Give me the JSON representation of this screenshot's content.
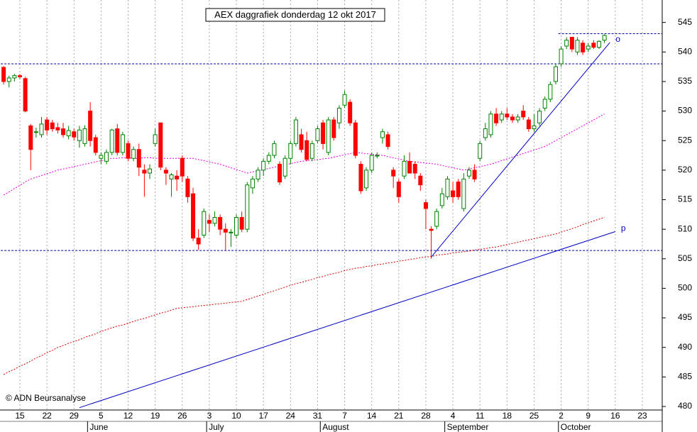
{
  "chart_data": {
    "type": "candlestick",
    "title": "AEX daggrafiek donderdag 12 okt 2017",
    "copyright": "© ADN Beursanalyse",
    "categories": [
      null,
      null,
      null,
      "15",
      null,
      null,
      null,
      null,
      "22",
      null,
      null,
      null,
      null,
      "29",
      null,
      null,
      null,
      null,
      "5",
      null,
      null,
      null,
      null,
      "12",
      null,
      null,
      null,
      null,
      "19",
      null,
      null,
      null,
      null,
      "26",
      null,
      null,
      null,
      null,
      "3",
      null,
      null,
      null,
      null,
      "10",
      null,
      null,
      null,
      null,
      "17",
      null,
      null,
      null,
      null,
      "24",
      null,
      null,
      null,
      null,
      "31",
      null,
      null,
      null,
      null,
      "7",
      null,
      null,
      null,
      null,
      "14",
      null,
      null,
      null,
      null,
      "21",
      null,
      null,
      null,
      null,
      "28",
      null,
      null,
      null,
      null,
      "4",
      null,
      null,
      null,
      null,
      "11",
      null,
      null,
      null,
      null,
      "18",
      null,
      null,
      null,
      null,
      "25",
      null,
      null,
      null,
      null,
      "2",
      null,
      null,
      null,
      null,
      "9",
      null,
      null,
      null,
      null,
      "16",
      null,
      null,
      null,
      null,
      "23",
      null,
      null,
      null
    ],
    "month_labels": [
      null,
      null,
      null,
      null,
      null,
      null,
      null,
      null,
      null,
      null,
      null,
      null,
      null,
      null,
      null,
      null,
      "June",
      null,
      null,
      null,
      null,
      null,
      null,
      null,
      null,
      null,
      null,
      null,
      null,
      null,
      null,
      null,
      null,
      null,
      null,
      null,
      null,
      null,
      "July",
      null,
      null,
      null,
      null,
      null,
      null,
      null,
      null,
      null,
      null,
      null,
      null,
      null,
      null,
      null,
      null,
      null,
      null,
      null,
      null,
      "August",
      null,
      null,
      null,
      null,
      null,
      null,
      null,
      null,
      null,
      null,
      null,
      null,
      null,
      null,
      null,
      null,
      null,
      null,
      null,
      null,
      null,
      null,
      "September",
      null,
      null,
      null,
      null,
      null,
      null,
      null,
      null,
      null,
      null,
      null,
      null,
      null,
      null,
      null,
      null,
      null,
      null,
      null,
      null,
      "October",
      null,
      null,
      null,
      null,
      null,
      null,
      null,
      null,
      null,
      null,
      null,
      null,
      null,
      null,
      null,
      null,
      null,
      null
    ],
    "ohlc": [
      [
        537.4,
        537.6,
        534.5,
        535.0
      ],
      [
        535.0,
        536.0,
        534.0,
        535.6
      ],
      [
        535.6,
        536.3,
        535.0,
        536.0
      ],
      [
        536.0,
        536.3,
        535.4,
        535.8
      ],
      [
        535.5,
        535.8,
        529.8,
        530.0
      ],
      [
        527.5,
        527.8,
        520.0,
        523.5
      ],
      [
        526.5,
        527.2,
        525.5,
        526.5
      ],
      [
        526.0,
        529.0,
        525.5,
        527.8
      ],
      [
        528.5,
        529.0,
        526.0,
        526.8
      ],
      [
        528.0,
        528.5,
        526.5,
        527.0
      ],
      [
        527.2,
        528.0,
        526.2,
        526.8
      ],
      [
        527.0,
        528.0,
        525.5,
        526.0
      ],
      [
        525.8,
        527.5,
        525.2,
        526.7
      ],
      [
        526.5,
        527.0,
        525.0,
        525.6
      ],
      [
        525.0,
        527.5,
        523.8,
        526.8
      ],
      [
        524.5,
        527.6,
        524.0,
        527.0
      ],
      [
        530.0,
        531.5,
        524.0,
        525.0
      ],
      [
        525.5,
        526.0,
        522.5,
        523.0
      ],
      [
        522.0,
        523.0,
        521.0,
        522.5
      ],
      [
        521.5,
        523.5,
        521.0,
        523.0
      ],
      [
        523.0,
        527.0,
        522.5,
        526.8
      ],
      [
        527.0,
        527.8,
        522.5,
        523.0
      ],
      [
        523.0,
        526.5,
        522.5,
        526.0
      ],
      [
        524.5,
        525.0,
        521.5,
        522.0
      ],
      [
        522.0,
        524.0,
        521.5,
        523.5
      ],
      [
        523.5,
        524.5,
        519.0,
        520.5
      ],
      [
        520.0,
        521.0,
        515.5,
        519.5
      ],
      [
        519.5,
        521.0,
        518.5,
        520.2
      ],
      [
        524.5,
        527.0,
        524.0,
        526.0
      ],
      [
        528.0,
        528.0,
        520.0,
        520.5
      ],
      [
        520.0,
        520.5,
        517.5,
        519.5
      ],
      [
        518.5,
        519.5,
        515.5,
        519.2
      ],
      [
        519.0,
        520.0,
        516.5,
        518.5
      ],
      [
        522.0,
        522.5,
        518.0,
        519.0
      ],
      [
        518.5,
        519.0,
        514.5,
        515.5
      ],
      [
        516.0,
        517.0,
        508.0,
        508.5
      ],
      [
        508.5,
        510.0,
        506.5,
        507.5
      ],
      [
        509.0,
        513.5,
        508.5,
        513.0
      ],
      [
        511.5,
        512.5,
        509.5,
        511.0
      ],
      [
        511.0,
        513.0,
        510.5,
        512.0
      ],
      [
        512.0,
        512.5,
        509.0,
        510.0
      ],
      [
        510.0,
        511.0,
        506.5,
        509.5
      ],
      [
        509.5,
        510.0,
        507.0,
        509.5
      ],
      [
        509.0,
        512.5,
        508.5,
        512.0
      ],
      [
        512.0,
        513.0,
        509.5,
        510.0
      ],
      [
        510.0,
        518.0,
        509.5,
        517.5
      ],
      [
        517.0,
        519.0,
        516.0,
        518.5
      ],
      [
        518.5,
        520.5,
        518.0,
        520.0
      ],
      [
        520.0,
        522.0,
        519.0,
        521.5
      ],
      [
        521.5,
        523.0,
        521.0,
        522.5
      ],
      [
        522.5,
        525.0,
        522.0,
        524.5
      ],
      [
        521.0,
        521.5,
        517.5,
        518.0
      ],
      [
        519.0,
        522.5,
        518.5,
        522.0
      ],
      [
        522.0,
        525.0,
        521.0,
        524.5
      ],
      [
        524.5,
        529.0,
        524.0,
        528.5
      ],
      [
        526.0,
        527.0,
        523.0,
        523.5
      ],
      [
        525.0,
        526.5,
        521.5,
        521.8
      ],
      [
        522.0,
        525.0,
        521.5,
        524.5
      ],
      [
        525.0,
        527.5,
        524.5,
        527.0
      ],
      [
        528.0,
        528.5,
        523.5,
        524.5
      ],
      [
        523.0,
        529.0,
        522.5,
        528.5
      ],
      [
        528.5,
        529.0,
        525.0,
        525.5
      ],
      [
        528.0,
        531.0,
        527.0,
        530.5
      ],
      [
        531.0,
        533.5,
        530.5,
        532.8
      ],
      [
        531.5,
        532.0,
        527.5,
        528.0
      ],
      [
        528.0,
        528.5,
        522.0,
        522.5
      ],
      [
        521.0,
        521.5,
        516.0,
        516.5
      ],
      [
        517.0,
        520.5,
        516.5,
        520.0
      ],
      [
        520.0,
        523.0,
        519.5,
        522.5
      ],
      [
        522.5,
        523.0,
        522.0,
        522.5
      ],
      [
        525.5,
        527.0,
        524.5,
        526.5
      ],
      [
        526.0,
        526.5,
        523.5,
        524.0
      ],
      [
        520.0,
        520.5,
        517.0,
        519.0
      ],
      [
        518.0,
        518.5,
        514.5,
        515.5
      ],
      [
        519.0,
        522.5,
        518.5,
        521.5
      ],
      [
        521.5,
        523.0,
        519.5,
        519.5
      ],
      [
        521.0,
        521.5,
        518.5,
        519.5
      ],
      [
        519.0,
        519.5,
        516.5,
        517.5
      ],
      [
        514.5,
        515.0,
        510.0,
        513.5
      ],
      [
        510.0,
        510.5,
        505.0,
        509.8
      ],
      [
        510.5,
        513.5,
        510.0,
        513.0
      ],
      [
        514.0,
        517.0,
        513.5,
        516.0
      ],
      [
        515.5,
        519.0,
        515.0,
        518.5
      ],
      [
        516.5,
        518.0,
        514.5,
        515.5
      ],
      [
        518.0,
        518.5,
        515.0,
        515.5
      ],
      [
        513.5,
        519.5,
        513.0,
        518.5
      ],
      [
        519.0,
        520.5,
        518.5,
        520.0
      ],
      [
        520.0,
        521.0,
        518.0,
        518.5
      ],
      [
        522.0,
        525.0,
        521.5,
        524.5
      ],
      [
        525.5,
        528.0,
        525.0,
        527.0
      ],
      [
        526.0,
        530.0,
        525.5,
        529.5
      ],
      [
        529.5,
        530.5,
        527.5,
        528.0
      ],
      [
        528.5,
        530.0,
        528.0,
        529.5
      ],
      [
        529.5,
        530.5,
        528.5,
        529.0
      ],
      [
        529.0,
        529.5,
        528.0,
        528.5
      ],
      [
        528.5,
        529.5,
        528.0,
        529.0
      ],
      [
        530.0,
        531.0,
        528.5,
        529.0
      ],
      [
        528.5,
        529.0,
        526.5,
        527.0
      ],
      [
        527.0,
        529.5,
        526.5,
        527.5
      ],
      [
        528.0,
        530.5,
        527.5,
        530.0
      ],
      [
        530.5,
        532.5,
        530.0,
        532.0
      ],
      [
        532.0,
        535.0,
        531.5,
        534.5
      ],
      [
        535.0,
        538.0,
        534.5,
        537.5
      ],
      [
        538.0,
        541.0,
        537.5,
        540.5
      ],
      [
        541.0,
        542.5,
        540.5,
        542.0
      ],
      [
        542.5,
        542.5,
        540.0,
        540.5
      ],
      [
        540.0,
        542.5,
        539.5,
        542.0
      ],
      [
        541.5,
        542.0,
        539.5,
        540.0
      ],
      [
        540.5,
        541.5,
        540.0,
        541.0
      ],
      [
        541.5,
        542.0,
        540.5,
        540.8
      ],
      [
        540.8,
        542.0,
        540.5,
        541.8
      ],
      [
        542.0,
        543.0,
        541.5,
        542.8
      ],
      null,
      null,
      null,
      null,
      null,
      null,
      null,
      null,
      null,
      null
    ],
    "moving_averages": [
      {
        "color": "#e000e0",
        "values": [
          515.8,
          516.3,
          516.9,
          517.4,
          518.0,
          518.5,
          518.8,
          519.1,
          519.4,
          519.7,
          520.0,
          520.2,
          520.4,
          520.6,
          520.8,
          521.0,
          521.2,
          521.4,
          521.6,
          521.8,
          522.0,
          522.0,
          522.1,
          522.1,
          522.0,
          522.0,
          522.1,
          522.1,
          522.0,
          522.0,
          522.0,
          522.0,
          522.0,
          522.0,
          522.0,
          522.0,
          521.8,
          521.6,
          521.4,
          521.2,
          521.0,
          520.7,
          520.4,
          520.1,
          519.8,
          519.5,
          519.7,
          519.9,
          520.1,
          520.3,
          520.5,
          520.7,
          520.9,
          521.1,
          521.3,
          521.5,
          521.6,
          521.7,
          521.8,
          521.9,
          522.0,
          522.2,
          522.4,
          522.6,
          522.8,
          523.0,
          522.9,
          522.8,
          522.7,
          522.6,
          522.5,
          522.3,
          522.1,
          521.9,
          521.7,
          521.5,
          521.4,
          521.3,
          521.2,
          521.1,
          521.0,
          520.8,
          520.6,
          520.4,
          520.2,
          520.0,
          520.2,
          520.4,
          520.6,
          520.8,
          521.0,
          521.3,
          521.6,
          521.9,
          522.2,
          522.5,
          522.8,
          523.1,
          523.4,
          523.7,
          524.0,
          524.5,
          525.0,
          525.5,
          526.0,
          526.5,
          527.0,
          527.5,
          528.0,
          528.5,
          529.0,
          529.5,
          null,
          null,
          null,
          null,
          null,
          null,
          null,
          null,
          null,
          null
        ]
      },
      {
        "color": "#d00000",
        "values": [
          485.4,
          485.9,
          486.3,
          486.8,
          487.2,
          487.7,
          488.2,
          488.6,
          489.1,
          489.5,
          490.0,
          490.3,
          490.7,
          491.0,
          491.3,
          491.7,
          492.0,
          492.3,
          492.7,
          493.0,
          493.3,
          493.6,
          493.8,
          494.1,
          494.4,
          494.7,
          494.9,
          495.2,
          495.5,
          495.8,
          496.0,
          496.3,
          496.6,
          496.7,
          496.8,
          496.9,
          497.0,
          497.1,
          497.2,
          497.3,
          497.4,
          497.5,
          497.6,
          497.7,
          497.8,
          498.1,
          498.4,
          498.7,
          499.0,
          499.3,
          499.6,
          499.9,
          500.2,
          500.5,
          500.8,
          501.0,
          501.3,
          501.5,
          501.8,
          502.0,
          502.3,
          502.5,
          502.7,
          503.0,
          503.2,
          503.4,
          503.5,
          503.7,
          503.8,
          504.0,
          504.1,
          504.3,
          504.4,
          504.6,
          504.7,
          504.9,
          505.0,
          505.2,
          505.3,
          505.4,
          505.6,
          505.7,
          505.8,
          506.0,
          506.1,
          506.2,
          506.3,
          506.5,
          506.6,
          506.7,
          506.9,
          507.0,
          507.2,
          507.4,
          507.6,
          507.8,
          508.0,
          508.2,
          508.4,
          508.6,
          508.8,
          509.0,
          509.2,
          509.5,
          509.8,
          510.1,
          510.4,
          510.8,
          511.1,
          511.4,
          511.7,
          512.0,
          null,
          null,
          null,
          null,
          null,
          null,
          null,
          null,
          null,
          null
        ]
      }
    ],
    "trendlines": [
      {
        "label": "p",
        "color": "#0000c0",
        "points": [
          [
            14,
            479.8
          ],
          [
            113,
            509.6
          ]
        ]
      },
      {
        "label": "o",
        "color": "#0000c0",
        "points": [
          [
            79,
            505.3
          ],
          [
            112,
            541.6
          ]
        ]
      }
    ],
    "hlines": [
      {
        "value": 543.1,
        "start": 103
      },
      {
        "value": 538.0,
        "start": 0
      },
      {
        "value": 506.4,
        "start": 0
      }
    ],
    "up_color": "#008000",
    "down_color": "#ff0000",
    "ylim": [
      479.4,
      548.8
    ],
    "yticks": [
      480,
      485,
      490,
      495,
      500,
      505,
      510,
      515,
      520,
      525,
      530,
      535,
      540,
      545
    ],
    "grid": true
  }
}
